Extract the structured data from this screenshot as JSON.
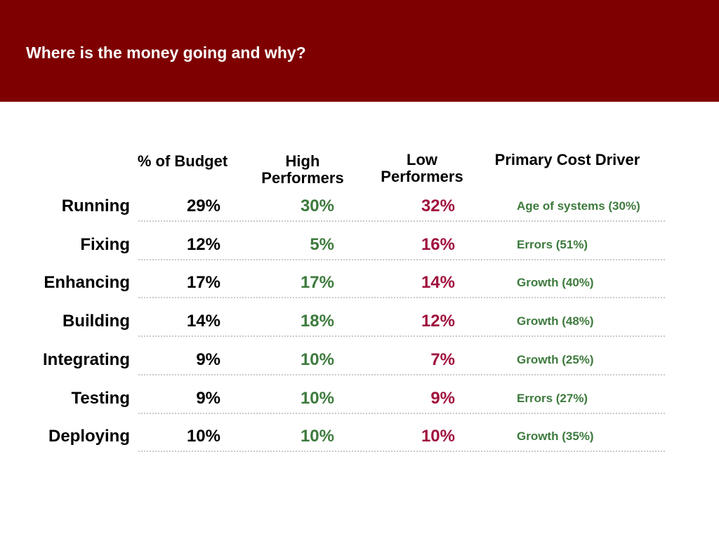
{
  "title": "Where is the money going and why?",
  "colors": {
    "banner": "#7f0000",
    "high_performers": "#3d7a3d",
    "low_performers": "#a0123c",
    "cost_driver": "#3d7a3d"
  },
  "table": {
    "headers": {
      "budget": "% of Budget",
      "high": "High\nPerformers",
      "low": "Low\nPerformers",
      "driver": "Primary Cost Driver"
    },
    "rows": [
      {
        "label": "Running",
        "budget": "29%",
        "high": "30%",
        "low": "32%",
        "driver": "Age of systems (30%)"
      },
      {
        "label": "Fixing",
        "budget": "12%",
        "high": "5%",
        "low": "16%",
        "driver": "Errors (51%)"
      },
      {
        "label": "Enhancing",
        "budget": "17%",
        "high": "17%",
        "low": "14%",
        "driver": "Growth (40%)"
      },
      {
        "label": "Building",
        "budget": "14%",
        "high": "18%",
        "low": "12%",
        "driver": "Growth (48%)"
      },
      {
        "label": "Integrating",
        "budget": "9%",
        "high": "10%",
        "low": "7%",
        "driver": "Growth (25%)"
      },
      {
        "label": "Testing",
        "budget": "9%",
        "high": "10%",
        "low": "9%",
        "driver": "Errors (27%)"
      },
      {
        "label": "Deploying",
        "budget": "10%",
        "high": "10%",
        "low": "10%",
        "driver": "Growth (35%)"
      }
    ]
  }
}
